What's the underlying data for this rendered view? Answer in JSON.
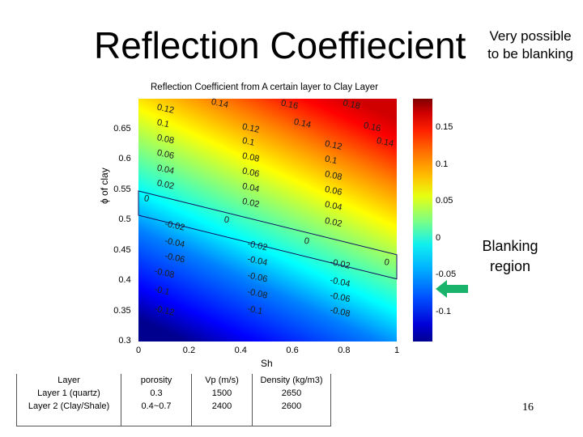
{
  "slide": {
    "title": "Reflection Coeffiecient",
    "note_top": "Very possible to be blanking",
    "note_blanking": "Blanking region",
    "page_number": "16"
  },
  "chart_data": {
    "type": "heatmap",
    "title": "Reflection Coefficient from A certain layer to Clay Layer",
    "xlabel": "Sh",
    "ylabel": "ϕ of clay",
    "xlim": [
      0,
      1
    ],
    "ylim": [
      0.3,
      0.7
    ],
    "x_ticks": [
      "0",
      "0.2",
      "0.4",
      "0.6",
      "0.8",
      "1"
    ],
    "y_ticks": [
      "0.3",
      "0.35",
      "0.4",
      "0.45",
      "0.5",
      "0.55",
      "0.6",
      "0.65"
    ],
    "colorbar": {
      "range": [
        -0.14,
        0.19
      ],
      "ticks": [
        "-0.1",
        "-0.05",
        "0",
        "0.05",
        "0.1",
        "0.15"
      ]
    },
    "colormap": [
      "#00008f",
      "#0000ff",
      "#0080ff",
      "#00ffff",
      "#80ff80",
      "#ffff00",
      "#ff8000",
      "#ff0000",
      "#800000"
    ],
    "contour_labels": [
      {
        "text": "0.14",
        "x": 0.28,
        "y": 0.691
      },
      {
        "text": "0.16",
        "x": 0.55,
        "y": 0.689
      },
      {
        "text": "0.18",
        "x": 0.79,
        "y": 0.689
      },
      {
        "text": "0.12",
        "x": 0.07,
        "y": 0.682
      },
      {
        "text": "0.1",
        "x": 0.07,
        "y": 0.657
      },
      {
        "text": "0.12",
        "x": 0.4,
        "y": 0.65
      },
      {
        "text": "0.14",
        "x": 0.6,
        "y": 0.658
      },
      {
        "text": "0.16",
        "x": 0.87,
        "y": 0.652
      },
      {
        "text": "0.08",
        "x": 0.07,
        "y": 0.632
      },
      {
        "text": "0.1",
        "x": 0.4,
        "y": 0.627
      },
      {
        "text": "0.12",
        "x": 0.72,
        "y": 0.622
      },
      {
        "text": "0.14",
        "x": 0.92,
        "y": 0.627
      },
      {
        "text": "0.06",
        "x": 0.07,
        "y": 0.607
      },
      {
        "text": "0.08",
        "x": 0.4,
        "y": 0.602
      },
      {
        "text": "0.1",
        "x": 0.72,
        "y": 0.597
      },
      {
        "text": "0.04",
        "x": 0.07,
        "y": 0.582
      },
      {
        "text": "0.06",
        "x": 0.4,
        "y": 0.577
      },
      {
        "text": "0.08",
        "x": 0.72,
        "y": 0.572
      },
      {
        "text": "0.02",
        "x": 0.07,
        "y": 0.557
      },
      {
        "text": "0.04",
        "x": 0.4,
        "y": 0.552
      },
      {
        "text": "0.06",
        "x": 0.72,
        "y": 0.547
      },
      {
        "text": "0",
        "x": 0.02,
        "y": 0.532
      },
      {
        "text": "0.02",
        "x": 0.4,
        "y": 0.527
      },
      {
        "text": "0.04",
        "x": 0.72,
        "y": 0.522
      },
      {
        "text": "-0.02",
        "x": 0.1,
        "y": 0.49
      },
      {
        "text": "0",
        "x": 0.33,
        "y": 0.497
      },
      {
        "text": "0.02",
        "x": 0.72,
        "y": 0.495
      },
      {
        "text": "-0.04",
        "x": 0.1,
        "y": 0.462
      },
      {
        "text": "-0.02",
        "x": 0.42,
        "y": 0.457
      },
      {
        "text": "0",
        "x": 0.64,
        "y": 0.462
      },
      {
        "text": "-0.06",
        "x": 0.1,
        "y": 0.437
      },
      {
        "text": "-0.04",
        "x": 0.42,
        "y": 0.432
      },
      {
        "text": "-0.02",
        "x": 0.74,
        "y": 0.427
      },
      {
        "text": "0",
        "x": 0.95,
        "y": 0.427
      },
      {
        "text": "-0.08",
        "x": 0.06,
        "y": 0.412
      },
      {
        "text": "-0.06",
        "x": 0.42,
        "y": 0.405
      },
      {
        "text": "-0.04",
        "x": 0.74,
        "y": 0.397
      },
      {
        "text": "-0.1",
        "x": 0.06,
        "y": 0.382
      },
      {
        "text": "-0.08",
        "x": 0.42,
        "y": 0.378
      },
      {
        "text": "-0.06",
        "x": 0.74,
        "y": 0.372
      },
      {
        "text": "-0.12",
        "x": 0.06,
        "y": 0.35
      },
      {
        "text": "-0.1",
        "x": 0.42,
        "y": 0.35
      },
      {
        "text": "-0.08",
        "x": 0.74,
        "y": 0.348
      }
    ],
    "blanking_region": [
      [
        0.0,
        0.548
      ],
      [
        1.0,
        0.443
      ],
      [
        1.0,
        0.403
      ],
      [
        0.0,
        0.508
      ]
    ]
  },
  "table": {
    "headers": [
      "Layer",
      "porosity",
      "Vp (m/s)",
      "Density (kg/m3)"
    ],
    "rows": [
      [
        "Layer 1 (quartz)",
        "0.3",
        "1500",
        "2650"
      ],
      [
        "Layer 2 (Clay/Shale)",
        "0.4~0.7",
        "2400",
        "2600"
      ],
      [
        "",
        "",
        "",
        ""
      ]
    ]
  }
}
